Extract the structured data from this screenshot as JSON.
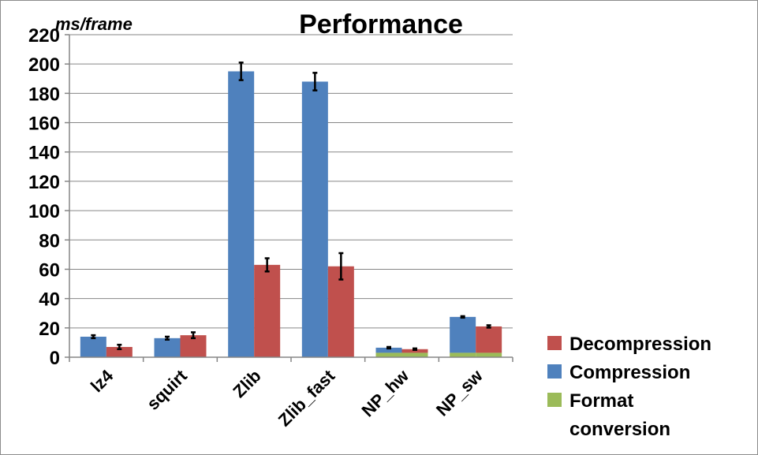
{
  "chart_data": {
    "type": "bar",
    "title": "Performance",
    "ylabel": "ms/frame",
    "xlabel": "",
    "ylim": [
      0,
      220
    ],
    "yticks": [
      0,
      20,
      40,
      60,
      80,
      100,
      120,
      140,
      160,
      180,
      200,
      220
    ],
    "grid": true,
    "legend_position": "bottom-right",
    "categories": [
      "lz4",
      "squirt",
      "Zlib",
      "Zlib_fast",
      "NP_hw",
      "NP_sw"
    ],
    "series": [
      {
        "name": "Compression",
        "color": "#4f81bd",
        "format_conversion": [
          0,
          0,
          0,
          0,
          3,
          3
        ],
        "values": [
          14,
          13,
          195,
          188,
          6.5,
          27.5
        ],
        "error": [
          1,
          1,
          6,
          6,
          0.5,
          0.5
        ]
      },
      {
        "name": "Decompression",
        "color": "#c0504d",
        "format_conversion": [
          0,
          0,
          0,
          0,
          3,
          3
        ],
        "values": [
          7,
          15,
          63,
          62,
          5.5,
          21
        ],
        "error": [
          1.5,
          2,
          4.5,
          9,
          0.5,
          0.8
        ]
      }
    ],
    "format_conversion": {
      "name": "Format conversion",
      "name_lines": [
        "Format",
        "conversion"
      ],
      "color": "#9bbb59"
    },
    "legend": [
      {
        "label": "Decompression",
        "color": "#c0504d"
      },
      {
        "label": "Compression",
        "color": "#4f81bd"
      },
      {
        "label_lines": [
          "Format",
          "conversion"
        ],
        "color": "#9bbb59"
      }
    ]
  }
}
